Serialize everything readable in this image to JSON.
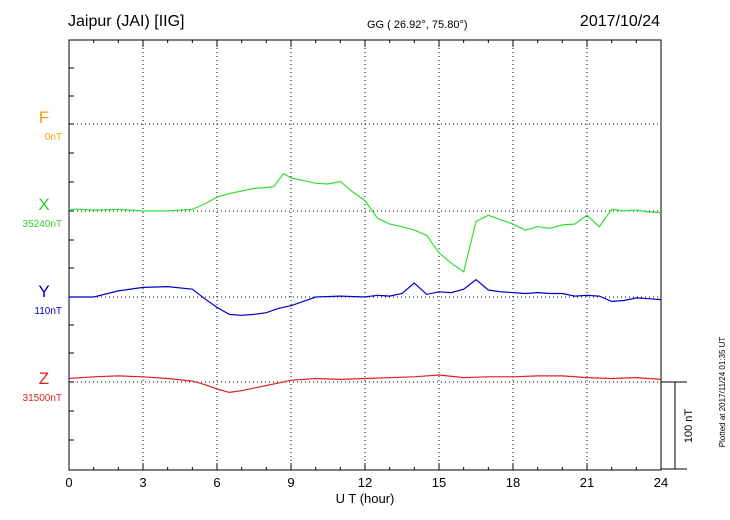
{
  "header": {
    "station": "Jaipur (JAI)  [IIG]",
    "coords": "GG ( 26.92°,  75.80°)",
    "date": "2017/10/24"
  },
  "footer": {
    "plotted": "Plotted at 2017/11/24 01:35 UT"
  },
  "chart_data": {
    "type": "line",
    "title": "Jaipur (JAI)  [IIG]",
    "xlabel": "U T (hour)",
    "ylabel": "",
    "xlim": [
      0,
      24
    ],
    "x_ticks": [
      0,
      3,
      6,
      9,
      12,
      15,
      18,
      21,
      24
    ],
    "x_tick_labels": [
      "0",
      "3",
      "6",
      "9",
      "12",
      "15",
      "18",
      "21",
      "24"
    ],
    "grid": true,
    "scale_bar": {
      "label": "100 nT",
      "value_nT": 100
    },
    "series": [
      {
        "name": "F",
        "baseline_label": "0nT",
        "color": "#f5a300",
        "x": [],
        "values": []
      },
      {
        "name": "X",
        "baseline_label": "35240nT",
        "color": "#33dd33",
        "x": [
          0,
          0.5,
          1,
          2,
          3,
          4,
          5,
          5.5,
          6,
          6.5,
          7,
          7.5,
          8,
          8.3,
          8.7,
          9,
          9.5,
          10,
          10.5,
          11,
          11.5,
          12,
          12.5,
          13,
          13.5,
          14,
          14.5,
          15,
          15.5,
          16,
          16.5,
          17,
          17.5,
          18,
          18.5,
          19,
          19.5,
          20,
          20.5,
          21,
          21.5,
          22,
          22.5,
          23,
          23.5,
          24
        ],
        "values": [
          2,
          2,
          1,
          2,
          0,
          0,
          2,
          8,
          16,
          20,
          23,
          26,
          27,
          28,
          43,
          38,
          35,
          32,
          31,
          34,
          22,
          12,
          -8,
          -15,
          -18,
          -22,
          -28,
          -48,
          -60,
          -70,
          -12,
          -5,
          -10,
          -15,
          -22,
          -18,
          -20,
          -16,
          -15,
          -5,
          -18,
          2,
          0,
          1,
          -1,
          -2
        ]
      },
      {
        "name": "Y",
        "baseline_label": "110nT",
        "color": "#0000cc",
        "x": [
          0,
          1,
          2,
          3,
          4,
          5,
          5.5,
          6,
          6.5,
          7,
          7.5,
          8,
          8.5,
          9,
          9.5,
          10,
          11,
          12,
          12.5,
          13,
          13.5,
          14,
          14.5,
          15,
          15.5,
          16,
          16.5,
          17,
          17.5,
          18,
          18.5,
          19,
          19.5,
          20,
          20.5,
          21,
          21.5,
          22,
          22.5,
          23,
          23.5,
          24
        ],
        "values": [
          0,
          0,
          7,
          11,
          12,
          9,
          -2,
          -12,
          -20,
          -21,
          -20,
          -18,
          -13,
          -10,
          -5,
          0,
          1,
          0,
          2,
          1,
          4,
          16,
          3,
          6,
          5,
          9,
          20,
          8,
          6,
          5,
          4,
          5,
          4,
          4,
          1,
          2,
          1,
          -5,
          -4,
          -1,
          -2,
          -3
        ]
      },
      {
        "name": "Z",
        "baseline_label": "31500nT",
        "color": "#dd2222",
        "x": [
          0,
          1,
          2,
          3,
          4,
          5,
          5.5,
          6,
          6.5,
          7,
          7.5,
          8,
          8.5,
          9,
          10,
          11,
          12,
          13,
          14,
          15,
          16,
          17,
          18,
          19,
          20,
          21,
          22,
          23,
          24
        ],
        "values": [
          4,
          6,
          7,
          6,
          4,
          1,
          -3,
          -8,
          -12,
          -10,
          -7,
          -4,
          -1,
          2,
          4,
          3,
          4,
          5,
          6,
          8,
          5,
          6,
          6,
          7,
          7,
          5,
          4,
          5,
          3
        ]
      }
    ]
  }
}
